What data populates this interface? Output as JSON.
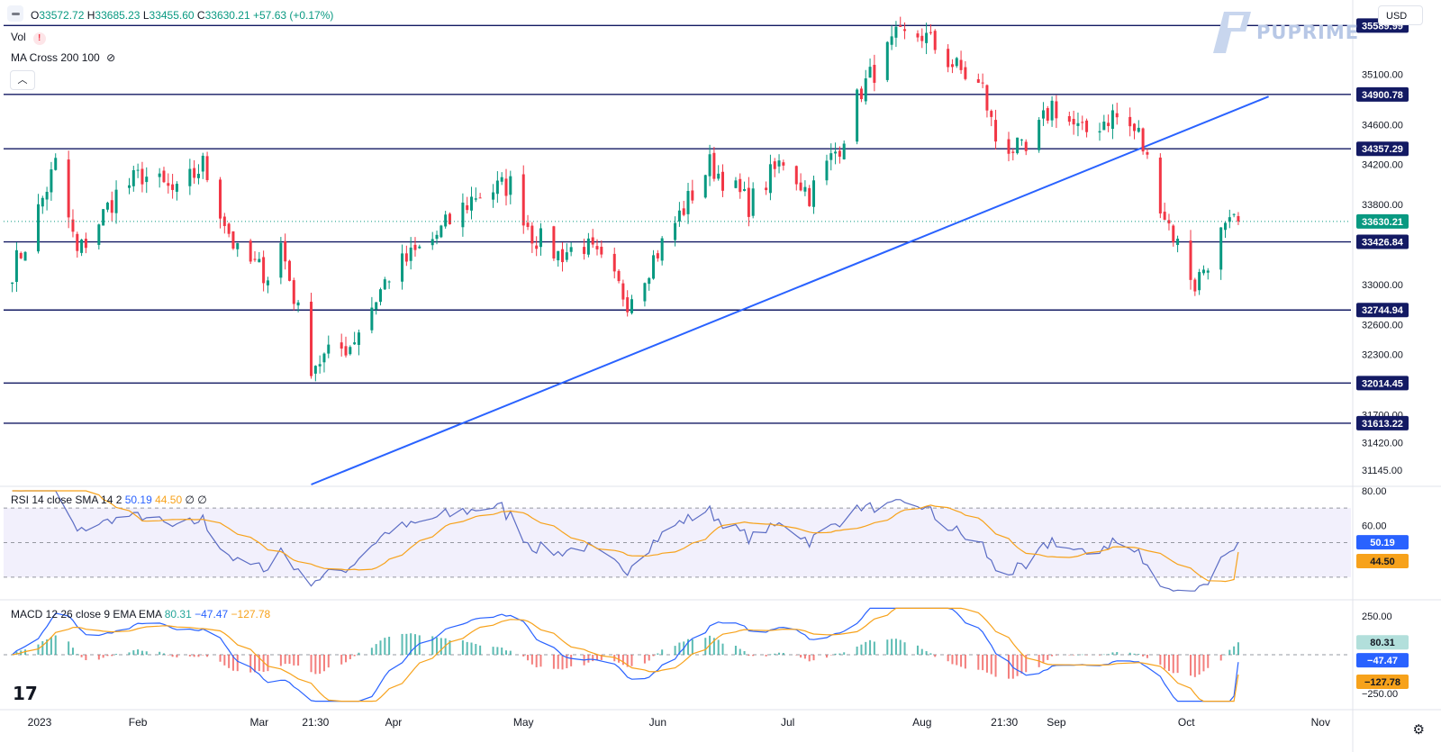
{
  "header": {
    "ohlc": {
      "o_label": "O",
      "o": "33572.72",
      "h_label": "H",
      "h": "33685.23",
      "l_label": "L",
      "l": "33455.60",
      "c_label": "C",
      "c": "33630.21",
      "change": "+57.63 (+0.17%)"
    },
    "vol_label": "Vol",
    "ma_label": "MA Cross 200 100",
    "currency": "USD",
    "logo_text": "PUPRIME"
  },
  "colors": {
    "up": "#089981",
    "down": "#f23645",
    "trend": "#2962ff",
    "level": "#131a63",
    "rsi": "#5b6cc4",
    "rsi_sma": "#f7a21b",
    "macd": "#2962ff",
    "signal": "#f7a21b"
  },
  "chart_data": [
    {
      "type": "candlestick",
      "ylim": [
        31000,
        35800
      ],
      "y_ticks": [
        35100,
        34600,
        34200,
        33800,
        33000,
        32600,
        32300,
        31700,
        31420,
        31145
      ],
      "x_ticks": [
        "2023",
        "Feb",
        "Mar",
        "21:30",
        "Apr",
        "May",
        "Jun",
        "Jul",
        "Aug",
        "21:30",
        "Sep",
        "Oct",
        "Nov"
      ],
      "levels": [
        {
          "value": 35589.99,
          "label": "35589.99"
        },
        {
          "value": 34900.78,
          "label": "34900.78"
        },
        {
          "value": 34357.29,
          "label": "34357.29"
        },
        {
          "value": 33426.84,
          "label": "33426.84"
        },
        {
          "value": 32744.94,
          "label": "32744.94"
        },
        {
          "value": 32014.45,
          "label": "32014.45"
        },
        {
          "value": 31613.22,
          "label": "31613.22"
        }
      ],
      "last_price": {
        "value": 33630.21,
        "label": "33630.21"
      },
      "trendline": {
        "from": {
          "date": "2023-03-13",
          "value": 31000
        },
        "to": {
          "date": "2023-10-20",
          "value": 34880
        }
      },
      "anchors": [
        [
          "2023-01-03",
          33150
        ],
        [
          "2023-01-06",
          33400
        ],
        [
          "2023-01-13",
          34200
        ],
        [
          "2023-01-18",
          33300
        ],
        [
          "2023-01-27",
          33900
        ],
        [
          "2023-02-02",
          34100
        ],
        [
          "2023-02-10",
          33900
        ],
        [
          "2023-02-16",
          34200
        ],
        [
          "2023-02-24",
          33300
        ],
        [
          "2023-03-03",
          33100
        ],
        [
          "2023-03-06",
          33400
        ],
        [
          "2023-03-13",
          32200
        ],
        [
          "2023-03-22",
          32400
        ],
        [
          "2023-03-31",
          33100
        ],
        [
          "2023-04-10",
          33450
        ],
        [
          "2023-04-20",
          33900
        ],
        [
          "2023-04-28",
          34000
        ],
        [
          "2023-05-03",
          33500
        ],
        [
          "2023-05-09",
          33300
        ],
        [
          "2023-05-15",
          33400
        ],
        [
          "2023-05-19",
          33200
        ],
        [
          "2023-05-25",
          32850
        ],
        [
          "2023-06-02",
          33400
        ],
        [
          "2023-06-13",
          34200
        ],
        [
          "2023-06-22",
          33800
        ],
        [
          "2023-06-30",
          34250
        ],
        [
          "2023-07-06",
          33900
        ],
        [
          "2023-07-13",
          34400
        ],
        [
          "2023-07-18",
          34950
        ],
        [
          "2023-07-26",
          35450
        ],
        [
          "2023-08-01",
          35500
        ],
        [
          "2023-08-08",
          35200
        ],
        [
          "2023-08-15",
          34950
        ],
        [
          "2023-08-18",
          34450
        ],
        [
          "2023-08-25",
          34300
        ],
        [
          "2023-08-31",
          34800
        ],
        [
          "2023-09-07",
          34500
        ],
        [
          "2023-09-14",
          34700
        ],
        [
          "2023-09-20",
          34500
        ],
        [
          "2023-09-26",
          33700
        ],
        [
          "2023-10-03",
          33000
        ],
        [
          "2023-10-09",
          33500
        ],
        [
          "2023-10-13",
          33630.21
        ]
      ]
    },
    {
      "type": "line",
      "title": "RSI 14 close SMA 14 2",
      "legend_values": {
        "rsi": "50.19",
        "sma": "44.50",
        "na1": "∅",
        "na2": "∅"
      },
      "ylim": [
        20,
        80
      ],
      "y_ticks": [
        80,
        60
      ],
      "bands": [
        70,
        50,
        30
      ],
      "last": {
        "rsi": 50.19,
        "sma": 44.5,
        "rsi_label": "50.19",
        "sma_label": "44.50"
      }
    },
    {
      "type": "line",
      "title": "MACD 12 26 close 9 EMA EMA",
      "legend_values": {
        "hist": "80.31",
        "macd": "−47.47",
        "signal": "−127.78"
      },
      "ylim": [
        -320,
        320
      ],
      "y_ticks": [
        {
          "v": 250,
          "t": "250.00"
        },
        {
          "v": -250,
          "t": "−250.00"
        }
      ],
      "last": {
        "hist": 80.31,
        "macd": -47.47,
        "signal": -127.78,
        "hist_label": "80.31",
        "macd_label": "−47.47",
        "signal_label": "−127.78"
      }
    }
  ]
}
